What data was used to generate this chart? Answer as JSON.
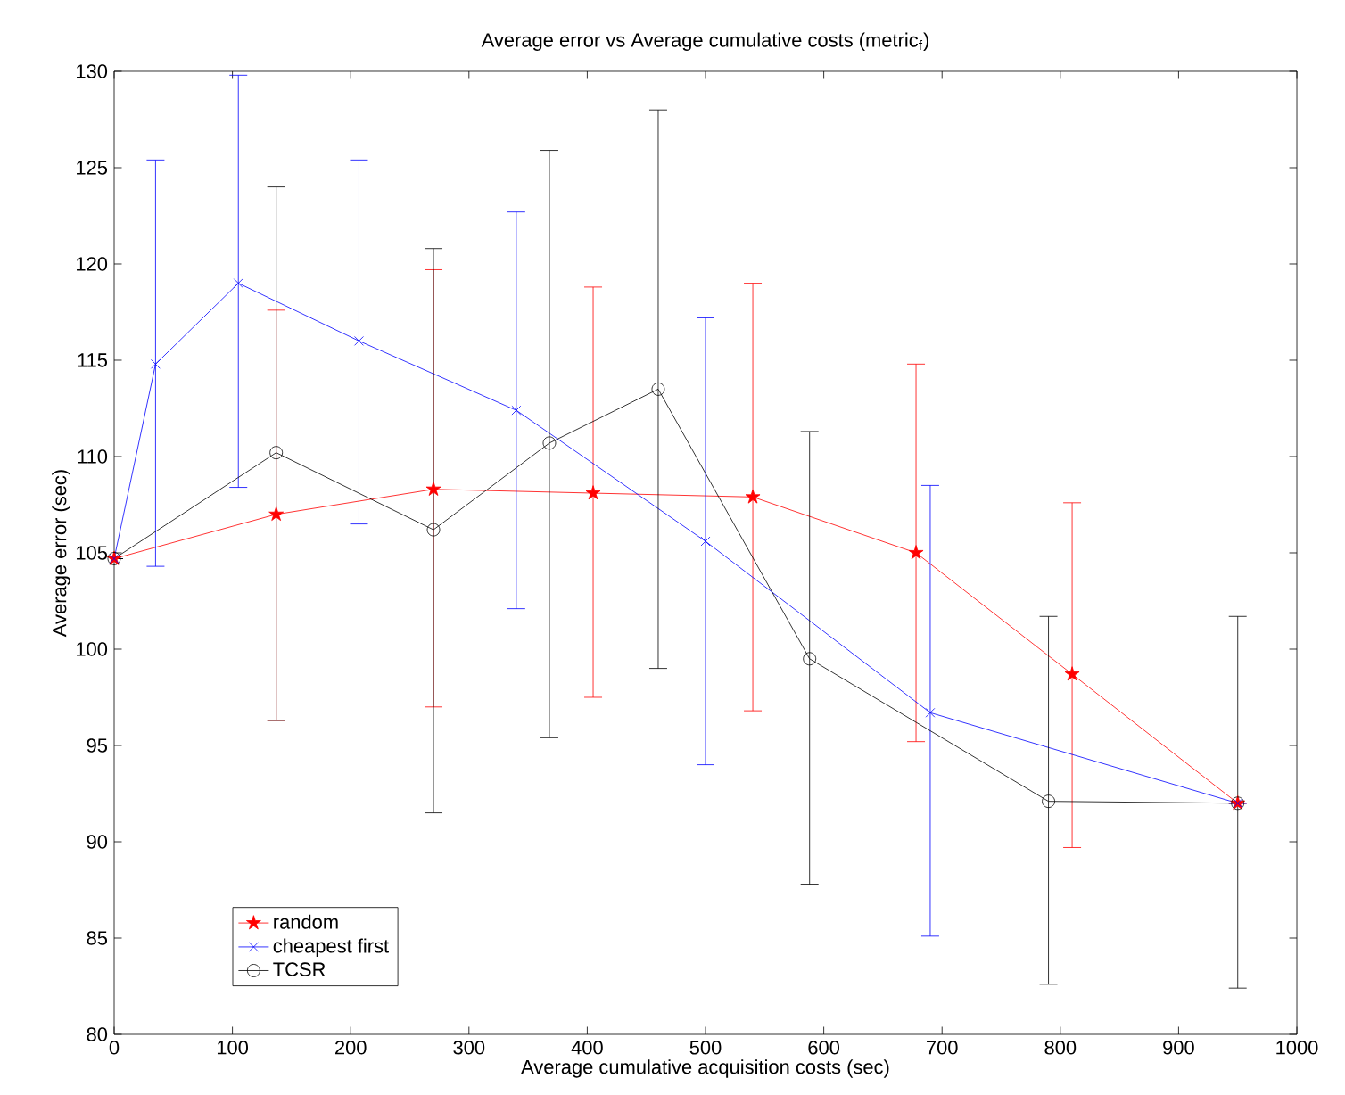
{
  "chart_data": {
    "type": "line",
    "title": "Average error vs Average cumulative costs (metric$_{f}$)",
    "xlabel": "Average cumulative acquisition costs (sec)",
    "ylabel": "Average error (sec)",
    "xlim": [
      0,
      1000
    ],
    "xticks": [
      0,
      100,
      200,
      300,
      400,
      500,
      600,
      700,
      800,
      900,
      1000
    ],
    "ylim": [
      80,
      130
    ],
    "yticks": [
      80,
      85,
      90,
      95,
      100,
      105,
      110,
      115,
      120,
      125,
      130
    ],
    "legend": "bottom left",
    "line_style": "solid",
    "series": [
      {
        "name": "random",
        "color": "#ff0000",
        "marker": "star",
        "x": [
          0,
          137,
          270,
          405,
          540,
          678,
          810,
          950
        ],
        "values": [
          104.7,
          107.0,
          108.3,
          108.1,
          107.9,
          105.0,
          98.7,
          92.0
        ],
        "errors": [
          null,
          [
            96.3,
            117.6
          ],
          [
            97.0,
            119.7
          ],
          [
            97.5,
            118.8
          ],
          [
            96.8,
            119.0
          ],
          [
            95.2,
            114.8
          ],
          [
            89.7,
            107.6
          ],
          null
        ]
      },
      {
        "name": "cheapest first",
        "color": "#0000ff",
        "marker": "cross",
        "x": [
          0,
          35,
          105,
          207,
          340,
          500,
          690,
          950
        ],
        "values": [
          104.7,
          114.8,
          119.0,
          116.0,
          112.4,
          105.6,
          96.7,
          92.0
        ],
        "errors": [
          null,
          [
            104.3,
            125.4
          ],
          [
            108.4,
            129.8
          ],
          [
            106.5,
            125.4
          ],
          [
            102.1,
            122.7
          ],
          [
            94.0,
            117.2
          ],
          [
            85.1,
            108.5
          ],
          null
        ]
      },
      {
        "name": "TCSR",
        "color": "#000000",
        "marker": "circle",
        "x": [
          0,
          137,
          270,
          368,
          460,
          588,
          790,
          950
        ],
        "values": [
          104.7,
          110.2,
          106.2,
          110.7,
          113.5,
          99.5,
          92.1,
          92.0
        ],
        "errors": [
          null,
          [
            96.3,
            124.0
          ],
          [
            91.5,
            120.8
          ],
          [
            95.4,
            125.9
          ],
          [
            99.0,
            128.0
          ],
          [
            87.8,
            111.3
          ],
          [
            82.6,
            101.7
          ],
          [
            82.4,
            101.7
          ]
        ]
      }
    ]
  }
}
